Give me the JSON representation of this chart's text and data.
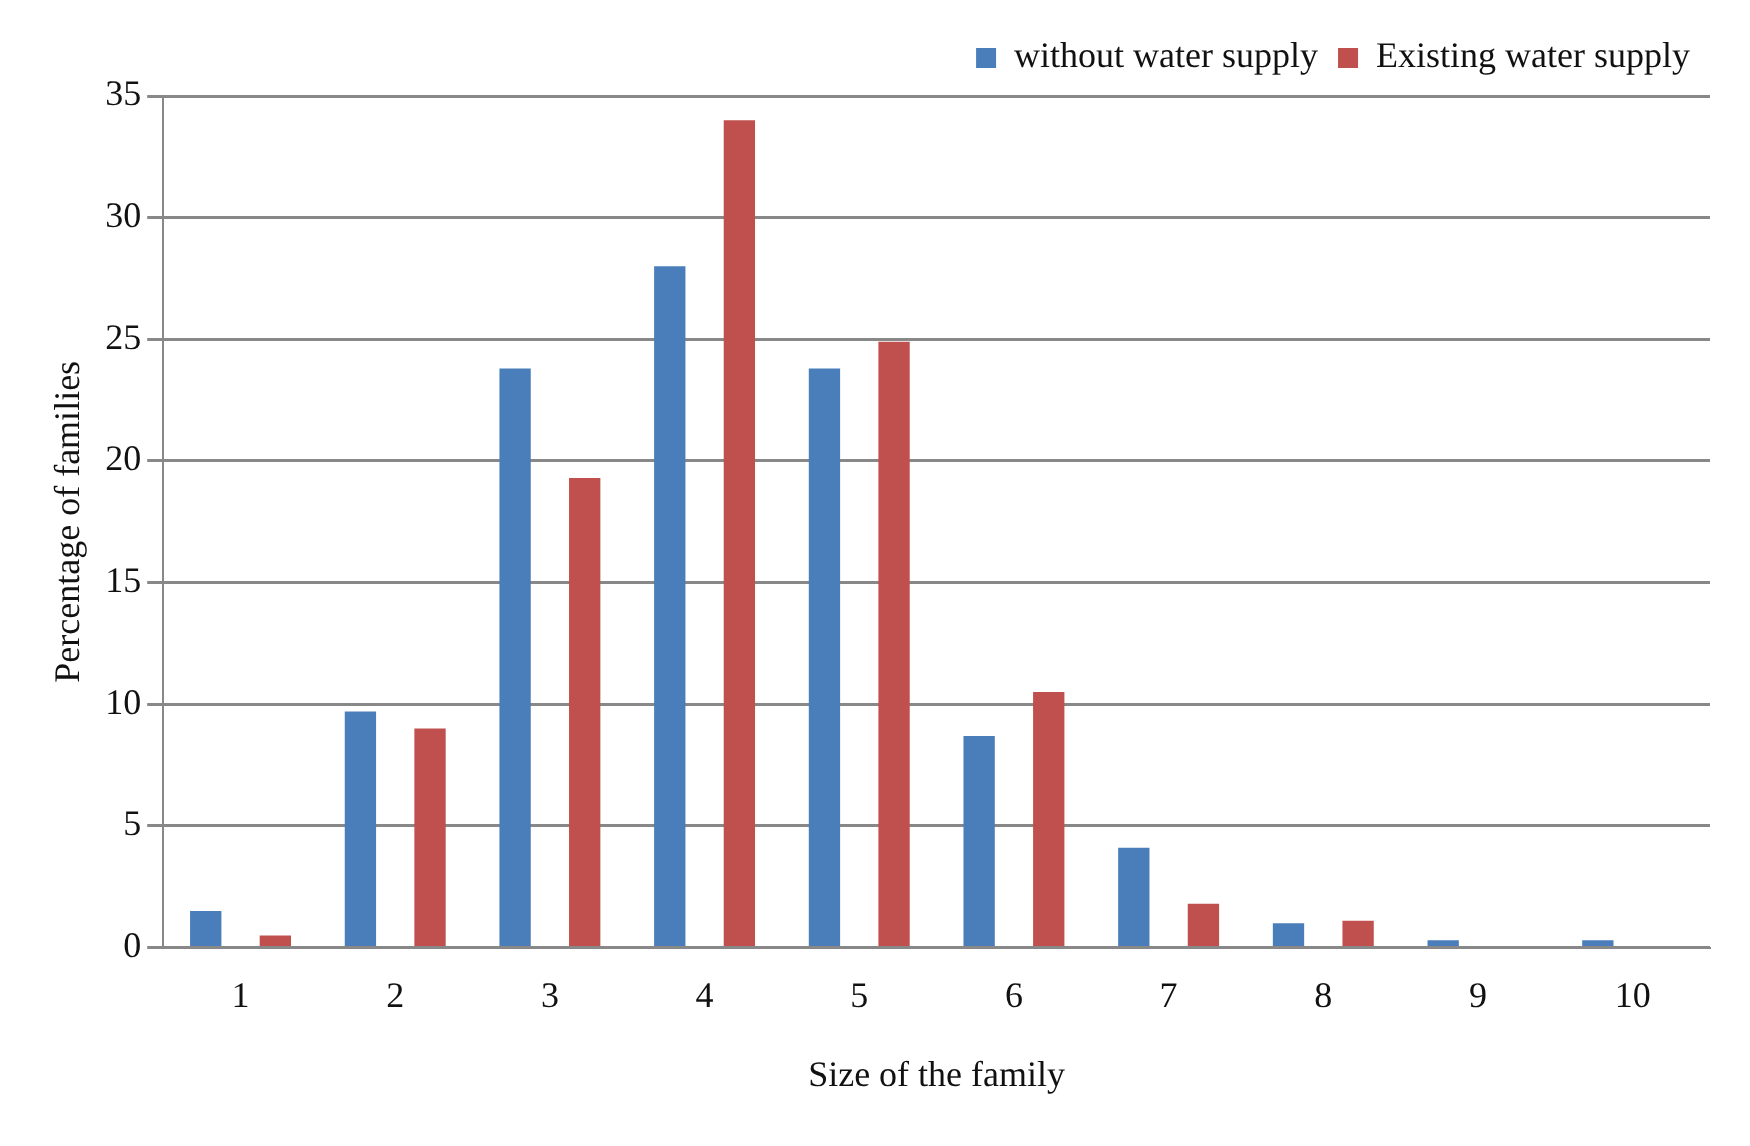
{
  "chart_data": {
    "type": "bar",
    "xlabel": "Size of the family",
    "ylabel": "Percentage of families",
    "categories": [
      "1",
      "2",
      "3",
      "4",
      "5",
      "6",
      "7",
      "8",
      "9",
      "10"
    ],
    "series": [
      {
        "name": "without water supply",
        "color": "#4a7ebb",
        "values": [
          1.5,
          9.7,
          23.8,
          28,
          23.8,
          8.7,
          4.1,
          1,
          0.3,
          0.3
        ]
      },
      {
        "name": "Existing water supply",
        "color": "#c0504d",
        "values": [
          0.5,
          9,
          19.3,
          34,
          24.9,
          10.5,
          1.8,
          1.1,
          null,
          null
        ]
      }
    ],
    "ylim": [
      0,
      35
    ],
    "yticks": [
      0,
      5,
      10,
      15,
      20,
      25,
      30,
      35
    ],
    "grid": "y",
    "legend": "top right"
  }
}
